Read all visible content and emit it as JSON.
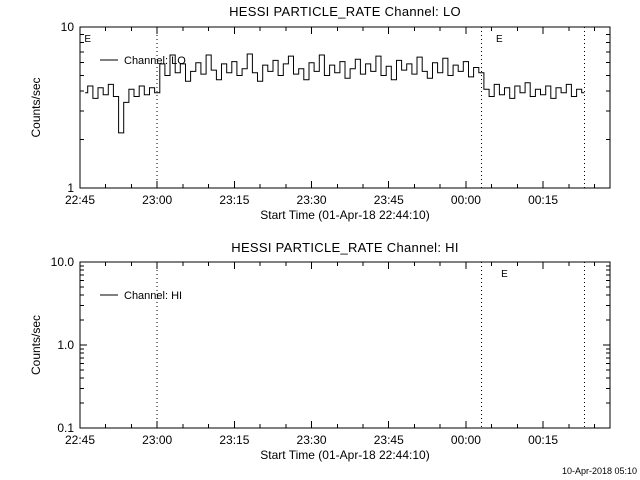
{
  "page": {
    "fg": "#000000",
    "bg": "#ffffff",
    "timestamp": "10-Apr-2018 05:10"
  },
  "chart_data": [
    {
      "type": "line",
      "title": "HESSI PARTICLE_RATE Channel: LO",
      "xlabel": "Start Time (01-Apr-18 22:44:10)",
      "ylabel": "Counts/sec",
      "yscale": "log",
      "ylim": [
        1,
        10
      ],
      "yticks": [
        {
          "v": 1,
          "label": "1"
        },
        {
          "v": 10,
          "label": "10"
        }
      ],
      "xlim_min": [
        0,
        103
      ],
      "x_minor_step": 5,
      "xticks": [
        {
          "m": 0,
          "label": "22:45"
        },
        {
          "m": 15,
          "label": "23:00"
        },
        {
          "m": 30,
          "label": "23:15"
        },
        {
          "m": 45,
          "label": "23:30"
        },
        {
          "m": 60,
          "label": "23:45"
        },
        {
          "m": 75,
          "label": "00:00"
        },
        {
          "m": 90,
          "label": "00:15"
        }
      ],
      "legend": {
        "label": "Channel: LO"
      },
      "event_lines_min": [
        15,
        78,
        98
      ],
      "flags": [
        {
          "m": 1.5,
          "label": "E"
        },
        {
          "m": 81.5,
          "label": "E"
        }
      ],
      "series": {
        "name": "Channel: LO",
        "x_start_min": 1,
        "x_step_min": 1,
        "values": [
          3.9,
          4.3,
          3.6,
          4.2,
          3.8,
          4.4,
          3.7,
          2.2,
          3.4,
          4.1,
          3.7,
          4.3,
          3.8,
          4.2,
          3.9,
          5.9,
          5.0,
          6.7,
          5.2,
          5.9,
          4.6,
          5.3,
          6.0,
          5.1,
          6.7,
          5.4,
          4.7,
          5.9,
          5.2,
          6.1,
          5.0,
          5.5,
          6.8,
          5.2,
          4.6,
          5.8,
          5.3,
          6.2,
          5.0,
          5.9,
          6.6,
          5.1,
          5.5,
          4.7,
          6.0,
          5.3,
          6.7,
          5.0,
          5.8,
          5.2,
          6.1,
          4.8,
          5.5,
          6.3,
          5.1,
          5.9,
          5.3,
          6.6,
          5.0,
          5.7,
          4.7,
          6.2,
          5.4,
          5.9,
          5.1,
          6.5,
          5.3,
          4.8,
          6.0,
          5.2,
          6.4,
          5.0,
          5.8,
          5.3,
          6.1,
          4.9,
          5.6,
          5.2,
          4.1,
          3.7,
          4.4,
          3.8,
          4.2,
          3.6,
          4.3,
          3.9,
          4.5,
          3.7,
          4.1,
          3.8,
          4.3,
          3.6,
          4.2,
          3.9,
          4.4,
          3.7,
          4.1,
          3.9
        ]
      }
    },
    {
      "type": "line",
      "title": "HESSI PARTICLE_RATE Channel: HI",
      "xlabel": "Start Time (01-Apr-18 22:44:10)",
      "ylabel": "Counts/sec",
      "yscale": "log",
      "ylim": [
        0.1,
        10
      ],
      "yticks": [
        {
          "v": 0.1,
          "label": "0.1"
        },
        {
          "v": 1,
          "label": "1.0"
        },
        {
          "v": 10,
          "label": "10.0"
        }
      ],
      "xlim_min": [
        0,
        103
      ],
      "x_minor_step": 5,
      "xticks": [
        {
          "m": 0,
          "label": "22:45"
        },
        {
          "m": 15,
          "label": "23:00"
        },
        {
          "m": 30,
          "label": "23:15"
        },
        {
          "m": 45,
          "label": "23:30"
        },
        {
          "m": 60,
          "label": "23:45"
        },
        {
          "m": 75,
          "label": "00:00"
        },
        {
          "m": 90,
          "label": "00:15"
        }
      ],
      "legend": {
        "label": "Channel: HI"
      },
      "event_lines_min": [
        15,
        78,
        98
      ],
      "flags": [
        {
          "m": 82.5,
          "label": "E"
        }
      ],
      "series": {
        "name": "Channel: HI",
        "x_start_min": 1,
        "x_step_min": 1,
        "values": []
      }
    }
  ]
}
